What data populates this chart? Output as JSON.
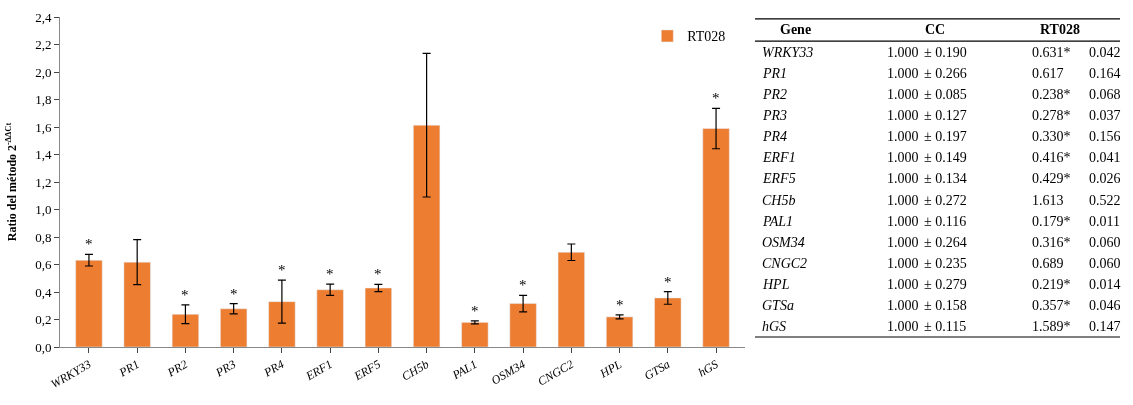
{
  "chart_data": [
    {
      "type": "bar",
      "ylabel": "Ratio del método 2$^{-ΔΔCt}$",
      "categories": [
        "WRKY33",
        "PR1",
        "PR2",
        "PR3",
        "PR4",
        "ERF1",
        "ERF5",
        "CH5b",
        "PAL1",
        "OSM34",
        "CNGC2",
        "HPL",
        "GTSa",
        "hGS"
      ],
      "series": [
        {
          "name": "RT028",
          "color": "#ed7d31",
          "values": [
            0.631,
            0.617,
            0.238,
            0.278,
            0.33,
            0.416,
            0.429,
            1.613,
            0.179,
            0.316,
            0.689,
            0.219,
            0.357,
            1.589
          ],
          "errors": [
            0.042,
            0.164,
            0.068,
            0.037,
            0.156,
            0.041,
            0.026,
            0.522,
            0.011,
            0.06,
            0.06,
            0.014,
            0.046,
            0.147
          ]
        }
      ],
      "ylim": [
        0,
        2.4
      ],
      "yticks": [
        {
          "value": 0,
          "label": "0,0"
        },
        {
          "value": 0.2,
          "label": "0,2"
        },
        {
          "value": 0.4,
          "label": "0,4"
        },
        {
          "value": 0.6,
          "label": "0,6"
        },
        {
          "value": 0.8,
          "label": "0,8"
        },
        {
          "value": 1.0,
          "label": "1,0"
        },
        {
          "value": 1.2,
          "label": "1,2"
        },
        {
          "value": 1.4,
          "label": "1,4"
        },
        {
          "value": 1.6,
          "label": "1,6"
        },
        {
          "value": 1.8,
          "label": "1,8"
        },
        {
          "value": 2.0,
          "label": "2,0"
        },
        {
          "value": 2.2,
          "label": "2,2"
        },
        {
          "value": 2.4,
          "label": "2,4"
        }
      ],
      "legend": "top right",
      "annotations": [
        {
          "text": "*",
          "x": "WRKY33",
          "y": 0.673
        },
        {
          "text": "*",
          "x": "PR2",
          "y": 0.306
        },
        {
          "text": "*",
          "x": "PR3",
          "y": 0.315
        },
        {
          "text": "*",
          "x": "PR4",
          "y": 0.486
        },
        {
          "text": "*",
          "x": "ERF1",
          "y": 0.457
        },
        {
          "text": "*",
          "x": "ERF5",
          "y": 0.455
        },
        {
          "text": "*",
          "x": "PAL1",
          "y": 0.19
        },
        {
          "text": "*",
          "x": "OSM34",
          "y": 0.376
        },
        {
          "text": "*",
          "x": "HPL",
          "y": 0.233
        },
        {
          "text": "*",
          "x": "GTSa",
          "y": 0.403
        },
        {
          "text": "*",
          "x": "hGS",
          "y": 1.736
        }
      ]
    },
    {
      "type": "other",
      "annotations": [
        "Gene",
        "CC",
        "RT028",
        "WRKY33",
        "1.000",
        "± 0.190",
        "0.631*",
        "0.042",
        "PR1",
        "1.000",
        "± 0.266",
        "0.617",
        "0.164",
        "PR2",
        "1.000",
        "± 0.085",
        "0.238*",
        "0.068",
        "PR3",
        "1.000",
        "± 0.127",
        "0.278*",
        "0.037",
        "PR4",
        "1.000",
        "± 0.197",
        "0.330*",
        "0.156",
        "ERF1",
        "1.000",
        "± 0.149",
        "0.416*",
        "0.041",
        "ERF5",
        "1.000",
        "± 0.134",
        "0.429*",
        "0.026",
        "CH5b",
        "1.000",
        "± 0.272",
        "1.613",
        "0.522",
        "PAL1",
        "1.000",
        "± 0.116",
        "0.179*",
        "0.011",
        "OSM34",
        "1.000",
        "± 0.264",
        "0.316*",
        "0.060",
        "CNGC2",
        "1.000",
        "± 0.235",
        "0.689",
        "0.060",
        "HPL",
        "1.000",
        "± 0.279",
        "0.219*",
        "0.014",
        "GTSa",
        "1.000",
        "± 0.158",
        "0.357*",
        "0.046",
        "hGS",
        "1.000",
        "± 0.115",
        "1.589*",
        "0.147"
      ]
    }
  ]
}
